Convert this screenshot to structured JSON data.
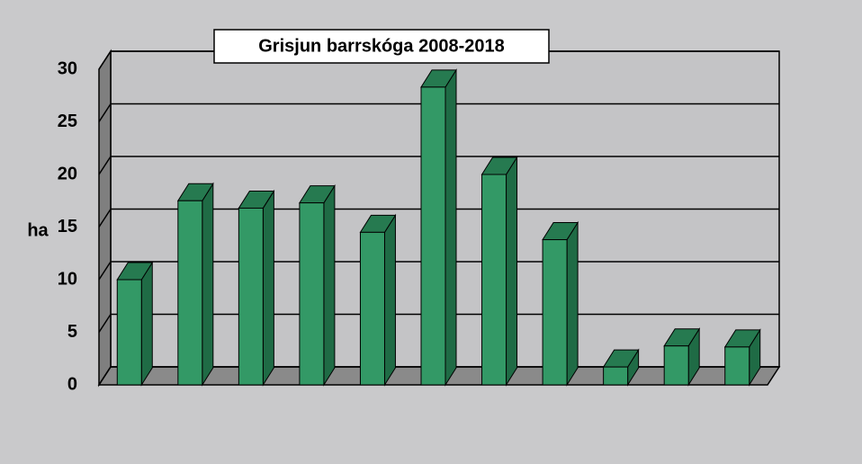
{
  "chart_data": {
    "type": "bar",
    "title": "Grisjun barrskóga 2008-2018",
    "ylabel": "ha",
    "categories": [
      null,
      null,
      null,
      null,
      null,
      null,
      null,
      null,
      null,
      null,
      null
    ],
    "values": [
      10,
      17.5,
      16.8,
      17.3,
      14.5,
      28.3,
      20,
      13.8,
      1.7,
      3.7,
      3.6
    ],
    "color": "#339966",
    "ylim": [
      0,
      30
    ],
    "yticks": [
      0,
      5,
      10,
      15,
      20,
      25,
      30
    ],
    "grid": true
  }
}
